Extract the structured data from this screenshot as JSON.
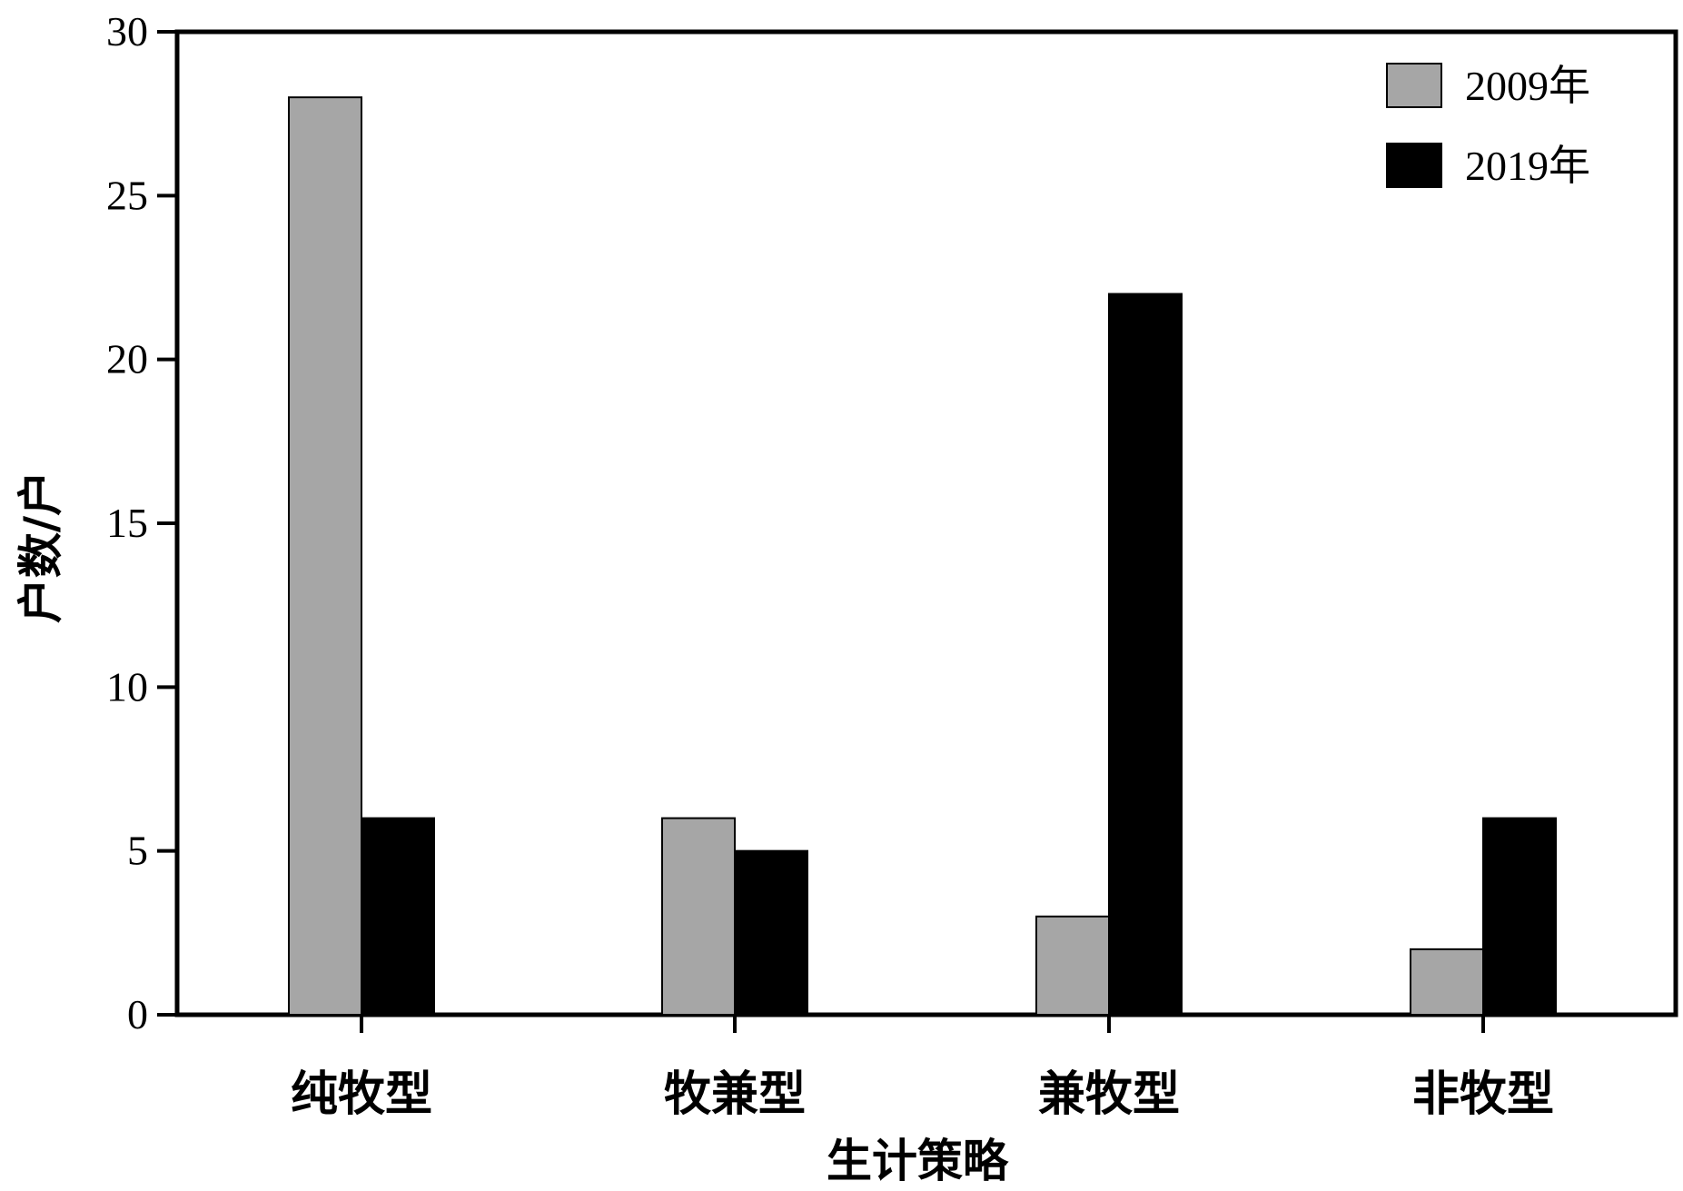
{
  "chart_data": {
    "type": "bar",
    "categories": [
      "纯牧型",
      "牧兼型",
      "兼牧型",
      "非牧型"
    ],
    "series": [
      {
        "name": "2009年",
        "values": [
          28,
          6,
          3,
          2
        ],
        "color": "#a6a6a6"
      },
      {
        "name": "2019年",
        "values": [
          6,
          5,
          22,
          6
        ],
        "color": "#000000"
      }
    ],
    "title": "",
    "xlabel": "生计策略",
    "ylabel": "户数/户",
    "ylim": [
      0,
      30
    ],
    "yticks": [
      "0",
      "5",
      "10",
      "15",
      "20",
      "25",
      "30"
    ],
    "legend_position": "top-right",
    "grid": false
  }
}
